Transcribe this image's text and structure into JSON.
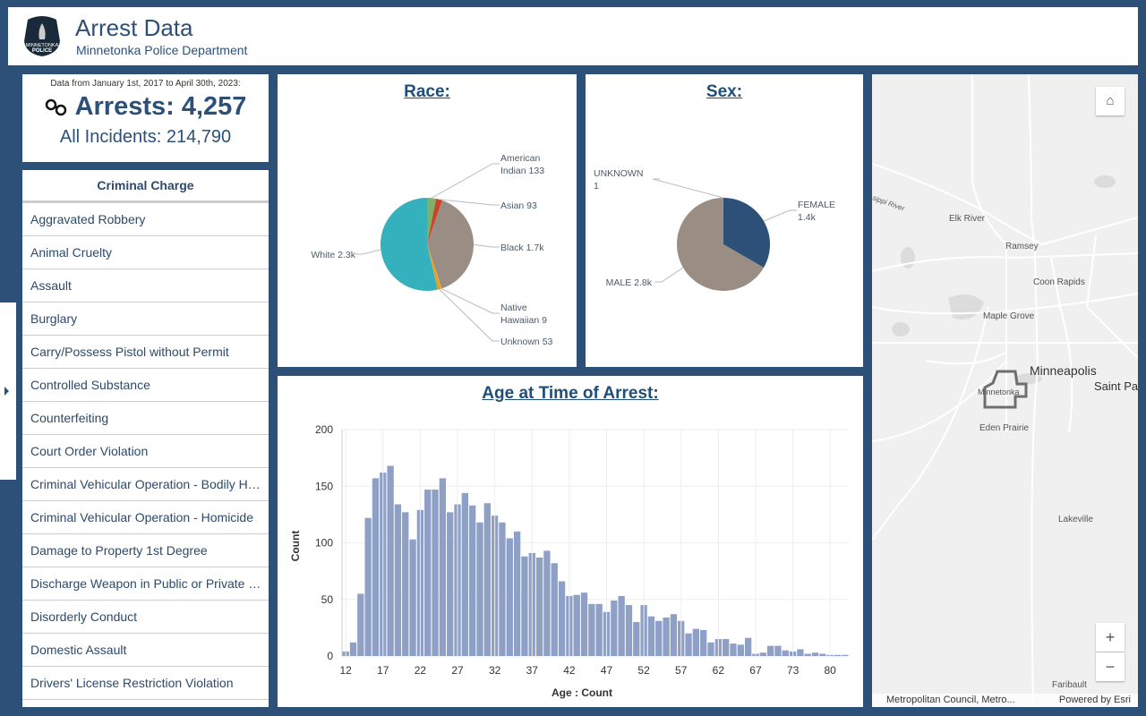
{
  "header": {
    "title": "Arrest Data",
    "subtitle": "Minnetonka Police Department",
    "logo_text": "MINNETONKA POLICE"
  },
  "summary": {
    "date_range": "Data from January 1st, 2017 to April 30th, 2023:",
    "arrests": "Arrests: 4,257",
    "incidents": "All Incidents: 214,790",
    "icon": "handcuffs-icon"
  },
  "charges": {
    "header": "Criminal Charge",
    "items": [
      "Aggravated Robbery",
      "Animal Cruelty",
      "Assault",
      "Burglary",
      "Carry/Possess Pistol without Permit",
      "Controlled Substance",
      "Counterfeiting",
      "Court Order Violation",
      "Criminal Vehicular Operation - Bodily Harm",
      "Criminal Vehicular Operation - Homicide",
      "Damage to Property 1st Degree",
      "Discharge Weapon in Public or Private Property",
      "Disorderly Conduct",
      "Domestic Assault",
      "Drivers' License Restriction Violation"
    ]
  },
  "colors": {
    "background": "#2c5078",
    "bar": "#8fa0c6",
    "title": "#1f4e79"
  },
  "chart_data": [
    {
      "type": "pie",
      "title": "Race:",
      "slices": [
        {
          "name": "American Indian",
          "value": 133,
          "label": "American Indian 133",
          "color": "#7fb069"
        },
        {
          "name": "Asian",
          "value": 93,
          "label": "Asian 93",
          "color": "#c8452c"
        },
        {
          "name": "Black",
          "value": 1700,
          "label": "Black 1.7k",
          "color": "#9a8d83"
        },
        {
          "name": "Native Hawaiian",
          "value": 9,
          "label": "Native Hawaiian 9",
          "color": "#e0b43a"
        },
        {
          "name": "Unknown",
          "value": 53,
          "label": "Unknown 53",
          "color": "#e8a020"
        },
        {
          "name": "White",
          "value": 2300,
          "label": "White 2.3k",
          "color": "#35b0bd"
        }
      ]
    },
    {
      "type": "pie",
      "title": "Sex:",
      "slices": [
        {
          "name": "FEMALE",
          "value": 1400,
          "label": "FEMALE 1.4k",
          "color": "#2c5078"
        },
        {
          "name": "MALE",
          "value": 2800,
          "label": "MALE 2.8k",
          "color": "#9a8d83"
        },
        {
          "name": "UNKNOWN",
          "value": 1,
          "label": "UNKNOWN 1",
          "color": "#888888"
        }
      ]
    },
    {
      "type": "bar",
      "title": "Age at Time of Arrest:",
      "xlabel": "Age : Count",
      "ylabel": "Count",
      "ylim": [
        0,
        200
      ],
      "yticks": [
        0,
        50,
        100,
        150,
        200
      ],
      "grid": true,
      "categories": [
        12,
        13,
        14,
        15,
        16,
        17,
        18,
        19,
        20,
        21,
        22,
        23,
        24,
        25,
        26,
        27,
        28,
        29,
        30,
        31,
        32,
        33,
        34,
        35,
        36,
        37,
        38,
        39,
        40,
        41,
        42,
        43,
        44,
        45,
        46,
        47,
        48,
        49,
        50,
        51,
        52,
        53,
        54,
        55,
        56,
        57,
        58,
        59,
        60,
        61,
        62,
        63,
        64,
        65,
        66,
        67,
        68,
        69,
        70,
        71,
        73,
        74,
        75,
        77,
        78,
        80,
        81,
        82
      ],
      "values": [
        4,
        12,
        55,
        122,
        157,
        162,
        168,
        134,
        127,
        103,
        129,
        147,
        147,
        157,
        127,
        134,
        144,
        133,
        118,
        135,
        124,
        118,
        104,
        110,
        88,
        91,
        87,
        93,
        82,
        66,
        53,
        54,
        56,
        46,
        46,
        39,
        49,
        53,
        45,
        30,
        45,
        35,
        31,
        34,
        37,
        31,
        20,
        24,
        23,
        12,
        15,
        15,
        11,
        10,
        16,
        2,
        3,
        9,
        9,
        5,
        4,
        6,
        2,
        3,
        2,
        1,
        1,
        1
      ],
      "xtick_labels": [
        "12",
        "17",
        "22",
        "27",
        "32",
        "37",
        "42",
        "47",
        "52",
        "57",
        "62",
        "67",
        "73",
        "80"
      ]
    }
  ],
  "map": {
    "labels": [
      "Elk River",
      "Ramsey",
      "Coon Rapids",
      "Maple Grove",
      "Minneapolis",
      "Saint Pa",
      "Minnetonka",
      "Eden Prairie",
      "Lakeville",
      "Faribault",
      "sippi River"
    ],
    "attribution": "Metropolitan Council, Metro...",
    "powered": "Powered by Esri",
    "zoom_in": "+",
    "zoom_out": "−"
  }
}
